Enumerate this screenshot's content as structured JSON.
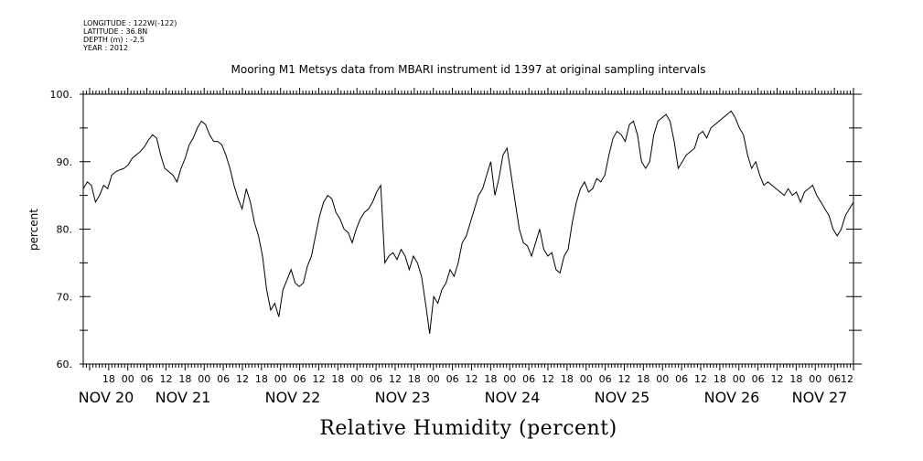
{
  "metadata": {
    "longitude": "LONGITUDE : 122W(-122)",
    "latitude": "LATITUDE : 36.8N",
    "depth": "DEPTH (m) : -2.5",
    "year": "YEAR : 2012"
  },
  "chart_data": {
    "type": "line",
    "title": "Mooring M1 Metsys data from MBARI instrument id 1397 at original sampling intervals",
    "xlabel": "Relative Humidity (percent)",
    "ylabel": "percent",
    "ylim": [
      60,
      100
    ],
    "yticks": [
      60,
      70,
      80,
      90,
      100
    ],
    "ytick_labels": [
      "60.",
      "70.",
      "80.",
      "90.",
      "100."
    ],
    "xlim_hours": [
      10,
      252
    ],
    "hour_ticks": [
      {
        "h": 18,
        "label": "18"
      },
      {
        "h": 24,
        "label": "00"
      },
      {
        "h": 30,
        "label": "06"
      },
      {
        "h": 36,
        "label": "12"
      },
      {
        "h": 42,
        "label": "18"
      },
      {
        "h": 48,
        "label": "00"
      },
      {
        "h": 54,
        "label": "06"
      },
      {
        "h": 60,
        "label": "12"
      },
      {
        "h": 66,
        "label": "18"
      },
      {
        "h": 72,
        "label": "00"
      },
      {
        "h": 78,
        "label": "06"
      },
      {
        "h": 84,
        "label": "12"
      },
      {
        "h": 90,
        "label": "18"
      },
      {
        "h": 96,
        "label": "00"
      },
      {
        "h": 102,
        "label": "06"
      },
      {
        "h": 108,
        "label": "12"
      },
      {
        "h": 114,
        "label": "18"
      },
      {
        "h": 120,
        "label": "00"
      },
      {
        "h": 126,
        "label": "06"
      },
      {
        "h": 132,
        "label": "12"
      },
      {
        "h": 138,
        "label": "18"
      },
      {
        "h": 144,
        "label": "00"
      },
      {
        "h": 150,
        "label": "06"
      },
      {
        "h": 156,
        "label": "12"
      },
      {
        "h": 162,
        "label": "18"
      },
      {
        "h": 168,
        "label": "00"
      },
      {
        "h": 174,
        "label": "06"
      },
      {
        "h": 180,
        "label": "12"
      },
      {
        "h": 186,
        "label": "18"
      },
      {
        "h": 192,
        "label": "00"
      },
      {
        "h": 198,
        "label": "06"
      },
      {
        "h": 204,
        "label": "12"
      },
      {
        "h": 210,
        "label": "18"
      },
      {
        "h": 216,
        "label": "00"
      },
      {
        "h": 222,
        "label": "06"
      },
      {
        "h": 228,
        "label": "12"
      },
      {
        "h": 234,
        "label": "18"
      },
      {
        "h": 240,
        "label": "00"
      },
      {
        "h": 246,
        "label": "06"
      },
      {
        "h": 250,
        "label": "12"
      }
    ],
    "date_labels": [
      {
        "h": 10,
        "label": "NOV 20"
      },
      {
        "h": 36,
        "label": "NOV 21"
      },
      {
        "h": 60,
        "label": "NOV 22"
      },
      {
        "h": 84,
        "label": "NOV 23"
      },
      {
        "h": 108,
        "label": "NOV 24"
      },
      {
        "h": 132,
        "label": "NOV 25"
      },
      {
        "h": 156,
        "label": "NOV 26"
      },
      {
        "h": 180,
        "label": "NOV 27"
      }
    ],
    "series": [
      {
        "points": [
          [
            10,
            86
          ],
          [
            11,
            87
          ],
          [
            12,
            86.5
          ],
          [
            13,
            84
          ],
          [
            14,
            85
          ],
          [
            15,
            86.5
          ],
          [
            16,
            86
          ],
          [
            17,
            88
          ],
          [
            18,
            88.5
          ],
          [
            19,
            88.8
          ],
          [
            20,
            89
          ],
          [
            21,
            89.5
          ],
          [
            22,
            90.5
          ],
          [
            23,
            91
          ],
          [
            24,
            91.5
          ],
          [
            25,
            92.2
          ],
          [
            26,
            93.2
          ],
          [
            27,
            94
          ],
          [
            28,
            93.5
          ],
          [
            29,
            91
          ],
          [
            30,
            89
          ],
          [
            31,
            88.5
          ],
          [
            32,
            88
          ],
          [
            33,
            87
          ],
          [
            34,
            89
          ],
          [
            35,
            90.5
          ],
          [
            36,
            92.5
          ],
          [
            37,
            93.5
          ],
          [
            38,
            95
          ],
          [
            39,
            96
          ],
          [
            40,
            95.5
          ],
          [
            41,
            94
          ],
          [
            42,
            93
          ],
          [
            43,
            93
          ],
          [
            44,
            92.5
          ],
          [
            45,
            91
          ],
          [
            46,
            89
          ],
          [
            47,
            86.5
          ],
          [
            48,
            84.5
          ],
          [
            49,
            83
          ],
          [
            50,
            86
          ],
          [
            51,
            84
          ],
          [
            52,
            81
          ],
          [
            53,
            79
          ],
          [
            54,
            76
          ],
          [
            55,
            71
          ],
          [
            56,
            68
          ],
          [
            57,
            69
          ],
          [
            58,
            67
          ],
          [
            59,
            71
          ],
          [
            60,
            72.5
          ],
          [
            61,
            74
          ],
          [
            62,
            72
          ],
          [
            63,
            71.5
          ],
          [
            64,
            72
          ],
          [
            65,
            74.5
          ],
          [
            66,
            76
          ],
          [
            67,
            79
          ],
          [
            68,
            82
          ],
          [
            69,
            84
          ],
          [
            70,
            85
          ],
          [
            71,
            84.5
          ],
          [
            72,
            82.5
          ],
          [
            73,
            81.5
          ],
          [
            74,
            80
          ],
          [
            75,
            79.5
          ],
          [
            76,
            78
          ],
          [
            77,
            80
          ],
          [
            78,
            81.5
          ],
          [
            79,
            82.5
          ],
          [
            80,
            83
          ],
          [
            81,
            84
          ],
          [
            82,
            85.5
          ],
          [
            83,
            86.5
          ],
          [
            84,
            75
          ],
          [
            85,
            76
          ],
          [
            86,
            76.5
          ],
          [
            87,
            75.5
          ],
          [
            88,
            77
          ],
          [
            89,
            76
          ],
          [
            90,
            74
          ],
          [
            91,
            76
          ],
          [
            92,
            75
          ],
          [
            93,
            73
          ],
          [
            94,
            69
          ],
          [
            95,
            64.5
          ],
          [
            96,
            70
          ],
          [
            97,
            69
          ],
          [
            98,
            71
          ],
          [
            99,
            72
          ],
          [
            100,
            74
          ],
          [
            101,
            73
          ],
          [
            102,
            75
          ],
          [
            103,
            78
          ],
          [
            104,
            79
          ],
          [
            105,
            81
          ],
          [
            106,
            83
          ],
          [
            107,
            85
          ],
          [
            108,
            86
          ],
          [
            109,
            88
          ],
          [
            110,
            90
          ],
          [
            111,
            85
          ],
          [
            112,
            87.5
          ],
          [
            113,
            91
          ],
          [
            114,
            92
          ],
          [
            115,
            88
          ],
          [
            116,
            84
          ],
          [
            117,
            80
          ],
          [
            118,
            78
          ],
          [
            119,
            77.5
          ],
          [
            120,
            76
          ],
          [
            121,
            78
          ],
          [
            122,
            80
          ],
          [
            123,
            77
          ],
          [
            124,
            76
          ],
          [
            125,
            76.5
          ],
          [
            126,
            74
          ],
          [
            127,
            73.5
          ],
          [
            128,
            76
          ],
          [
            129,
            77
          ],
          [
            130,
            81
          ],
          [
            131,
            84
          ],
          [
            132,
            86
          ],
          [
            133,
            87
          ],
          [
            134,
            85.5
          ],
          [
            135,
            86
          ],
          [
            136,
            87.5
          ],
          [
            137,
            87
          ],
          [
            138,
            88
          ],
          [
            139,
            91
          ],
          [
            140,
            93.5
          ],
          [
            141,
            94.5
          ],
          [
            142,
            94
          ],
          [
            143,
            93
          ],
          [
            144,
            95.5
          ],
          [
            145,
            96
          ],
          [
            146,
            94
          ],
          [
            147,
            90
          ],
          [
            148,
            89
          ],
          [
            149,
            90
          ],
          [
            150,
            94
          ],
          [
            151,
            96
          ],
          [
            152,
            96.5
          ],
          [
            153,
            97
          ],
          [
            154,
            96
          ],
          [
            155,
            93
          ],
          [
            156,
            89
          ],
          [
            157,
            90
          ],
          [
            158,
            91
          ],
          [
            159,
            91.5
          ],
          [
            160,
            92
          ],
          [
            161,
            94
          ],
          [
            162,
            94.5
          ],
          [
            163,
            93.5
          ],
          [
            164,
            95
          ],
          [
            165,
            95.5
          ],
          [
            166,
            96
          ],
          [
            167,
            96.5
          ],
          [
            168,
            97
          ],
          [
            169,
            97.5
          ],
          [
            170,
            96.5
          ],
          [
            171,
            95
          ],
          [
            172,
            94
          ],
          [
            173,
            91
          ],
          [
            174,
            89
          ],
          [
            175,
            90
          ],
          [
            176,
            88
          ],
          [
            177,
            86.5
          ],
          [
            178,
            87
          ],
          [
            179,
            86.5
          ],
          [
            180,
            86
          ],
          [
            181,
            85.5
          ],
          [
            182,
            85
          ],
          [
            183,
            86
          ],
          [
            184,
            85
          ],
          [
            185,
            85.5
          ],
          [
            186,
            84
          ],
          [
            187,
            85.5
          ],
          [
            188,
            86
          ],
          [
            189,
            86.5
          ],
          [
            190,
            85
          ],
          [
            191,
            84
          ],
          [
            192,
            83
          ],
          [
            193,
            82
          ],
          [
            194,
            80
          ],
          [
            195,
            79
          ],
          [
            196,
            80
          ],
          [
            197,
            82
          ],
          [
            198,
            83
          ],
          [
            199,
            84
          ]
        ]
      }
    ]
  }
}
